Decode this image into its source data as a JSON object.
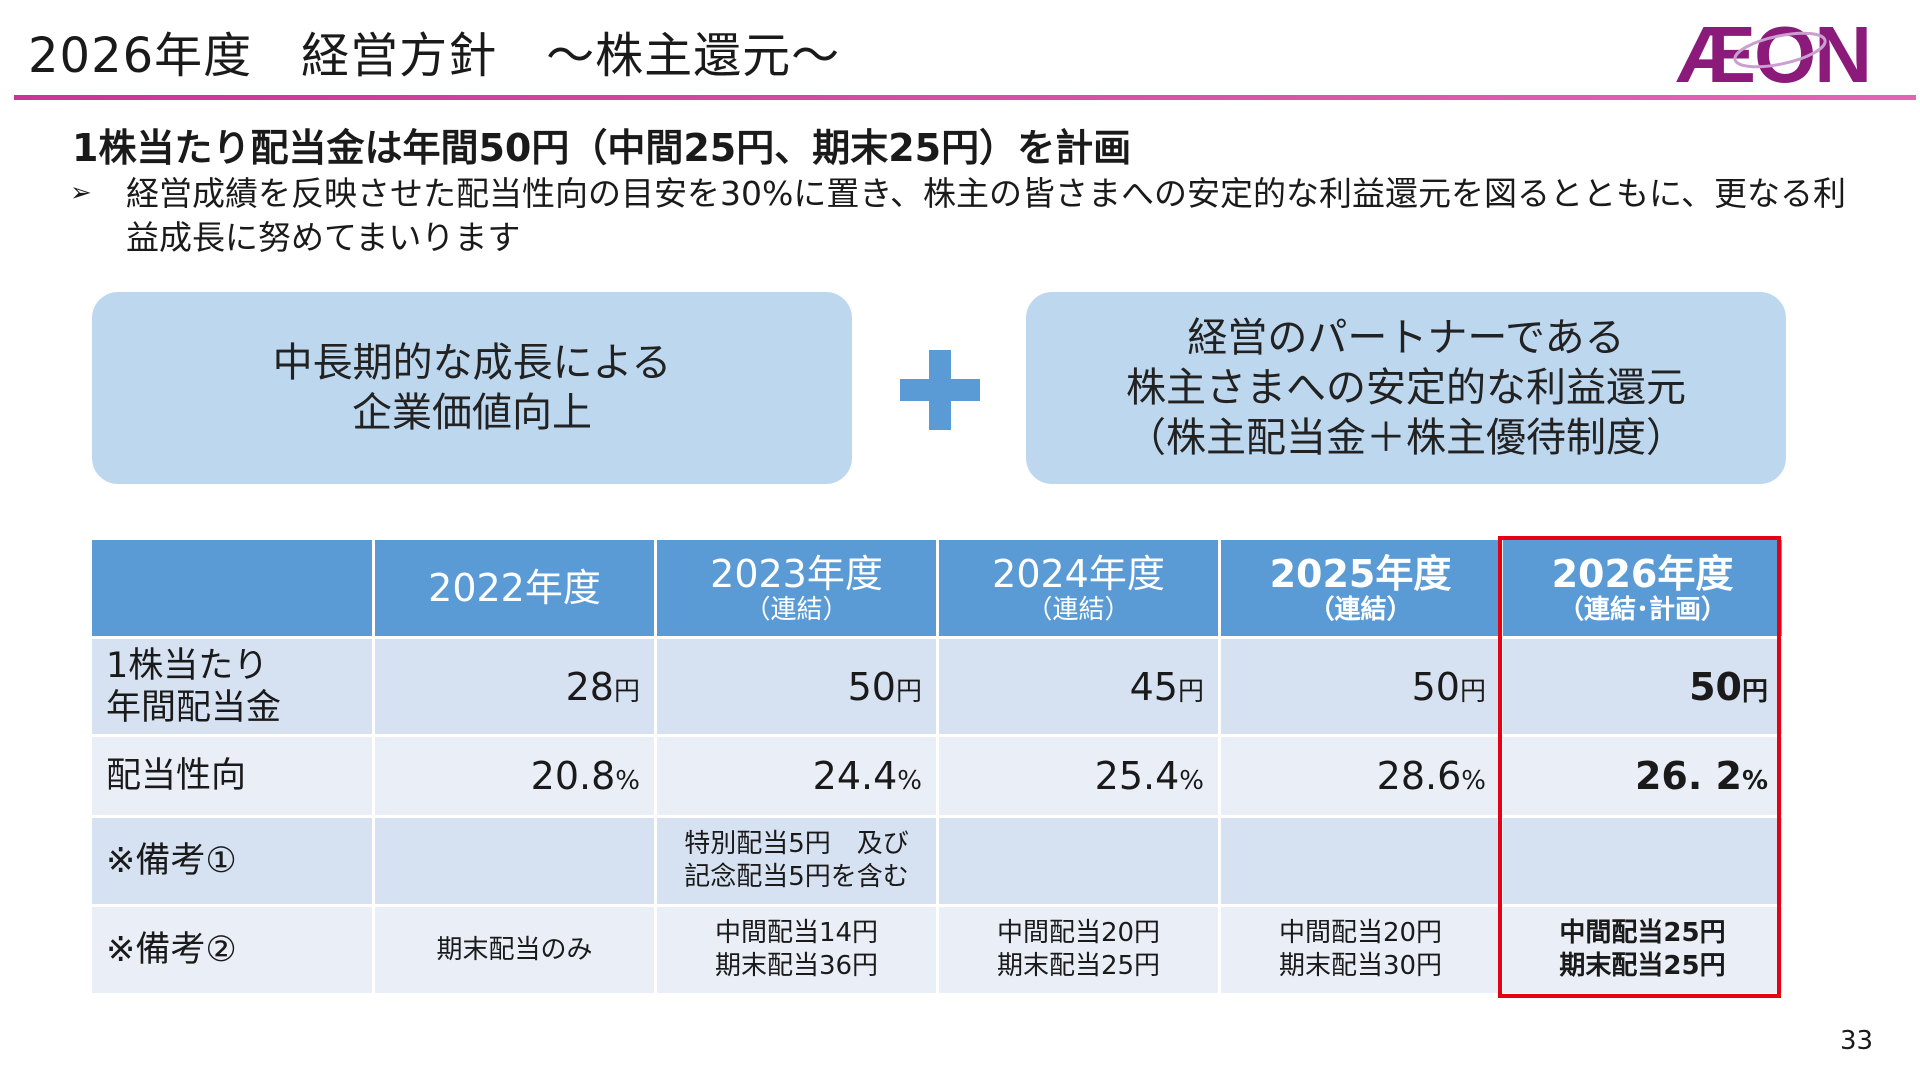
{
  "header": {
    "title": "2026年度　経営方針　～株主還元～",
    "logo_text": "ÆON"
  },
  "headline": "1株当たり配当金は年間50円（中間25円、期末25円）を計画",
  "bullet": "経営成績を反映させた配当性向の目安を30%に置き、株主の皆さまへの安定的な利益還元を図るとともに、更なる利益成長に努めてまいります",
  "box_left": "中長期的な成長による\n企業価値向上",
  "box_right": "経営のパートナーである\n株主さまへの安定的な利益還元\n（株主配当金＋株主優待制度）",
  "table": {
    "years": [
      {
        "year": "2022年度",
        "sub": ""
      },
      {
        "year": "2023年度",
        "sub": "（連結）"
      },
      {
        "year": "2024年度",
        "sub": "（連結）"
      },
      {
        "year": "2025年度",
        "sub": "（連結）"
      },
      {
        "year": "2026年度",
        "sub": "（連結･計画）"
      }
    ],
    "rows": {
      "dividend": {
        "label": "1株当たり\n年間配当金",
        "unit": "円",
        "values": [
          "28",
          "50",
          "45",
          "50",
          "50"
        ]
      },
      "payout": {
        "label": "配当性向",
        "unit": "%",
        "values": [
          "20.8",
          "24.4",
          "25.4",
          "28.6",
          "26. 2"
        ]
      },
      "note1": {
        "label": "※備考①",
        "values": [
          "",
          "特別配当5円　及び\n記念配当5円を含む",
          "",
          "",
          ""
        ]
      },
      "note2": {
        "label": "※備考②",
        "values": [
          "期末配当のみ",
          "中間配当14円\n期末配当36円",
          "中間配当20円\n期末配当25円",
          "中間配当20円\n期末配当30円",
          "中間配当25円\n期末配当25円"
        ]
      }
    }
  },
  "page_number": "33",
  "colors": {
    "accent_line": "#cc3399",
    "header_blue": "#5b9bd5",
    "box_blue": "#bdd7ee",
    "highlight_red": "#e60012",
    "logo_purple": "#8b1a7a"
  }
}
